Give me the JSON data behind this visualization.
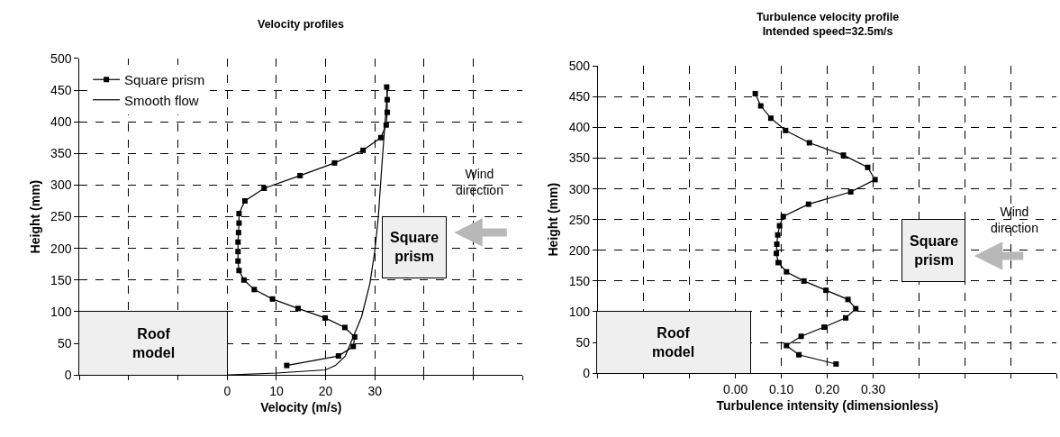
{
  "chart_data": [
    {
      "type": "line",
      "title": "Velocity profiles",
      "xlabel": "Velocity (m/s)",
      "ylabel": "Height (mm)",
      "xlim": [
        -30,
        60
      ],
      "xticks": [
        {
          "value": -30,
          "label": null
        },
        {
          "value": -20,
          "label": null
        },
        {
          "value": -10,
          "label": null
        },
        0,
        10,
        20,
        30,
        {
          "value": 40,
          "label": null
        },
        {
          "value": 50,
          "label": null
        },
        {
          "value": 60,
          "label": null
        }
      ],
      "ylim": [
        0,
        500
      ],
      "yticks": [
        0,
        50,
        100,
        150,
        200,
        250,
        300,
        350,
        400,
        450,
        500
      ],
      "grid": true,
      "legend": "top left",
      "marker": "square",
      "line_style": "solid",
      "series": [
        {
          "name": "Square prism",
          "color": "#000000",
          "x": [
            32.4,
            32.5,
            32.5,
            32.3,
            31.2,
            27.6,
            21.8,
            14.8,
            7.5,
            3.6,
            2.4,
            2.4,
            2.3,
            2.2,
            2.2,
            2.2,
            2.4,
            3.4,
            5.5,
            9.2,
            14.4,
            19.9,
            23.9,
            25.9,
            25.6,
            22.6,
            12.1
          ],
          "values": [
            455,
            435,
            415,
            395,
            375,
            355,
            335,
            315,
            295,
            275,
            255,
            240,
            225,
            210,
            195,
            180,
            165,
            150,
            135,
            120,
            105,
            90,
            75,
            60,
            45,
            30,
            15
          ]
        },
        {
          "name": "Smooth flow",
          "color": "#000000",
          "marker": "none",
          "x": [
            0,
            10,
            20,
            22,
            24,
            25.6,
            27.3,
            29,
            30,
            30.7,
            31.4,
            32,
            32.6
          ],
          "values": [
            0,
            3,
            8,
            15,
            30,
            60,
            92,
            145,
            197,
            250,
            329,
            392,
            455
          ]
        }
      ],
      "annotations": [
        "Roof\nmodel",
        "Square\nprism",
        "Wind\ndirection"
      ]
    },
    {
      "type": "line",
      "title": "Turbulence velocity profile\nIntended speed=32.5m/s",
      "xlabel": "Turbulence intensity (dimensionless)",
      "ylabel": "Height (mm)",
      "xlim": [
        -0.3,
        0.7
      ],
      "xticks": [
        {
          "value": -0.3,
          "label": null
        },
        {
          "value": -0.2,
          "label": null
        },
        {
          "value": -0.1,
          "label": null
        },
        {
          "value": 0,
          "label": "0.00"
        },
        {
          "value": 0.1,
          "label": "0.10"
        },
        {
          "value": 0.2,
          "label": "0.20"
        },
        {
          "value": 0.3,
          "label": "0.30"
        },
        {
          "value": 0.4,
          "label": null
        },
        {
          "value": 0.5,
          "label": null
        },
        {
          "value": 0.6,
          "label": null
        },
        {
          "value": 0.7,
          "label": null
        }
      ],
      "ylim": [
        0,
        500
      ],
      "yticks": [
        0,
        50,
        100,
        150,
        200,
        250,
        300,
        350,
        400,
        450,
        500
      ],
      "grid": true,
      "marker": "square",
      "line_style": "solid",
      "series": [
        {
          "color": "#000000",
          "x": [
            0.043,
            0.055,
            0.077,
            0.109,
            0.161,
            0.235,
            0.288,
            0.304,
            0.251,
            0.159,
            0.104,
            0.096,
            0.092,
            0.09,
            0.089,
            0.093,
            0.111,
            0.149,
            0.197,
            0.245,
            0.262,
            0.24,
            0.193,
            0.143,
            0.111,
            0.138,
            0.219
          ],
          "values": [
            455,
            435,
            415,
            395,
            375,
            355,
            335,
            315,
            295,
            275,
            255,
            240,
            225,
            210,
            195,
            180,
            165,
            150,
            135,
            120,
            105,
            90,
            75,
            60,
            45,
            30,
            15
          ]
        }
      ],
      "annotations": [
        "Roof\nmodel",
        "Square\nprism",
        "Wind\ndirection"
      ]
    }
  ]
}
